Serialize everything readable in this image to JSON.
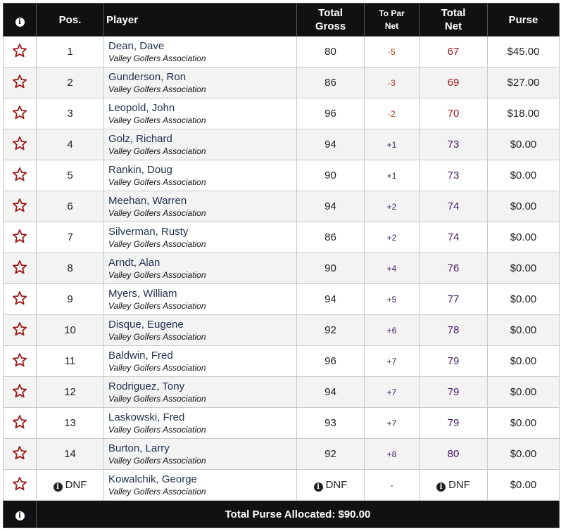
{
  "header": {
    "info_icon": "info-icon",
    "pos": "Pos.",
    "player": "Player",
    "total_gross_1": "Total",
    "total_gross_2": "Gross",
    "to_par_1": "To Par",
    "to_par_2": "Net",
    "total_net_1": "Total",
    "total_net_2": "Net",
    "purse": "Purse"
  },
  "rows": [
    {
      "pos": "1",
      "name": "Dean, Dave",
      "club": "Valley Golfers Association",
      "gross": "80",
      "topar": "-5",
      "net": "67",
      "purse": "$45.00"
    },
    {
      "pos": "2",
      "name": "Gunderson, Ron",
      "club": "Valley Golfers Association",
      "gross": "86",
      "topar": "-3",
      "net": "69",
      "purse": "$27.00"
    },
    {
      "pos": "3",
      "name": "Leopold, John",
      "club": "Valley Golfers Association",
      "gross": "96",
      "topar": "-2",
      "net": "70",
      "purse": "$18.00"
    },
    {
      "pos": "4",
      "name": "Golz, Richard",
      "club": "Valley Golfers Association",
      "gross": "94",
      "topar": "+1",
      "net": "73",
      "purse": "$0.00"
    },
    {
      "pos": "5",
      "name": "Rankin, Doug",
      "club": "Valley Golfers Association",
      "gross": "90",
      "topar": "+1",
      "net": "73",
      "purse": "$0.00"
    },
    {
      "pos": "6",
      "name": "Meehan, Warren",
      "club": "Valley Golfers Association",
      "gross": "94",
      "topar": "+2",
      "net": "74",
      "purse": "$0.00"
    },
    {
      "pos": "7",
      "name": "Silverman, Rusty",
      "club": "Valley Golfers Association",
      "gross": "86",
      "topar": "+2",
      "net": "74",
      "purse": "$0.00"
    },
    {
      "pos": "8",
      "name": "Arndt, Alan",
      "club": "Valley Golfers Association",
      "gross": "90",
      "topar": "+4",
      "net": "76",
      "purse": "$0.00"
    },
    {
      "pos": "9",
      "name": "Myers, William",
      "club": "Valley Golfers Association",
      "gross": "94",
      "topar": "+5",
      "net": "77",
      "purse": "$0.00"
    },
    {
      "pos": "10",
      "name": "Disque, Eugene",
      "club": "Valley Golfers Association",
      "gross": "92",
      "topar": "+6",
      "net": "78",
      "purse": "$0.00"
    },
    {
      "pos": "11",
      "name": "Baldwin, Fred",
      "club": "Valley Golfers Association",
      "gross": "96",
      "topar": "+7",
      "net": "79",
      "purse": "$0.00"
    },
    {
      "pos": "12",
      "name": "Rodriguez, Tony",
      "club": "Valley Golfers Association",
      "gross": "94",
      "topar": "+7",
      "net": "79",
      "purse": "$0.00"
    },
    {
      "pos": "13",
      "name": "Laskowski, Fred",
      "club": "Valley Golfers Association",
      "gross": "93",
      "topar": "+7",
      "net": "79",
      "purse": "$0.00"
    },
    {
      "pos": "14",
      "name": "Burton, Larry",
      "club": "Valley Golfers Association",
      "gross": "92",
      "topar": "+8",
      "net": "80",
      "purse": "$0.00"
    },
    {
      "pos": "DNF",
      "name": "Kowalchik, George",
      "club": "Valley Golfers Association",
      "gross": "DNF",
      "topar": "-",
      "net": "DNF",
      "purse": "$0.00",
      "dnf": true
    }
  ],
  "footer": {
    "total_purse": "Total Purse Allocated: $90.00"
  },
  "colors": {
    "header_bg": "#111114",
    "star_outline": "#9b1c1c",
    "under_par": "#a01818",
    "over_par": "#47186b"
  }
}
